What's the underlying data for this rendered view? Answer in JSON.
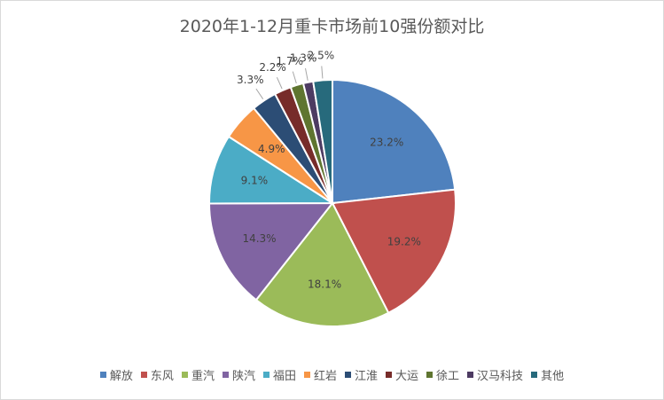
{
  "chart_data": {
    "type": "pie",
    "title": "2020年1-12月重卡市场前10强份额对比",
    "categories": [
      "解放",
      "东风",
      "重汽",
      "陕汽",
      "福田",
      "红岩",
      "江淮",
      "大运",
      "徐工",
      "汉马科技",
      "其他"
    ],
    "values": [
      23.2,
      19.2,
      18.1,
      14.3,
      9.1,
      4.9,
      3.3,
      2.2,
      1.7,
      1.3,
      2.5
    ],
    "value_labels": [
      "23.2%",
      "19.2%",
      "18.1%",
      "14.3%",
      "9.1%",
      "4.9%",
      "3.3%",
      "2.2%",
      "1.7%",
      "1.3%",
      "2.5%"
    ],
    "colors": [
      "#4F81BD",
      "#C0504D",
      "#9BBB59",
      "#8064A2",
      "#4BACC6",
      "#F79646",
      "#2C4D75",
      "#772C2A",
      "#5F7530",
      "#4D3B62",
      "#276A7C"
    ],
    "legend_position": "bottom"
  }
}
